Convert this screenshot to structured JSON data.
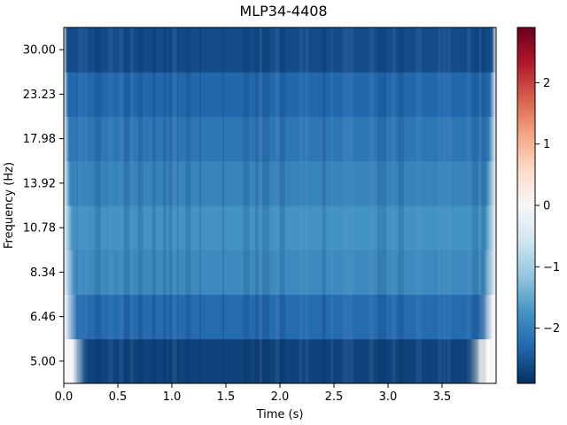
{
  "chart_data": {
    "type": "heatmap",
    "title": "MLP34-4408",
    "xlabel": "Time (s)",
    "ylabel": "Frequency (Hz)",
    "xlim": [
      0.0,
      4.0
    ],
    "x_ticks": [
      "0.0",
      "0.5",
      "1.0",
      "1.5",
      "2.0",
      "2.5",
      "3.0",
      "3.5"
    ],
    "x_tick_values": [
      0.0,
      0.5,
      1.0,
      1.5,
      2.0,
      2.5,
      3.0,
      3.5
    ],
    "frequencies": [
      "5.00",
      "6.46",
      "8.34",
      "10.78",
      "13.92",
      "17.98",
      "23.23",
      "30.00"
    ],
    "band_values": [
      -2.7,
      -2.25,
      -1.85,
      -1.75,
      -1.95,
      -2.1,
      -2.3,
      -2.6
    ],
    "edge_fade_seconds": {
      "5.00": [
        0.2,
        3.75
      ],
      "6.46": [
        0.13,
        3.85
      ],
      "8.34": [
        0.1,
        3.88
      ],
      "10.78": [
        0.08,
        3.9
      ],
      "13.92": [
        0.06,
        3.91
      ],
      "17.98": [
        0.05,
        3.93
      ],
      "23.23": [
        0.04,
        3.94
      ],
      "30.00": [
        0.03,
        3.96
      ]
    },
    "colormap": "RdBu_r",
    "colorbar": {
      "vmin": -2.9,
      "vmax": 2.9,
      "ticks": [
        "−2",
        "−1",
        "0",
        "1",
        "2"
      ],
      "tick_values": [
        -2,
        -1,
        0,
        1,
        2
      ]
    }
  }
}
